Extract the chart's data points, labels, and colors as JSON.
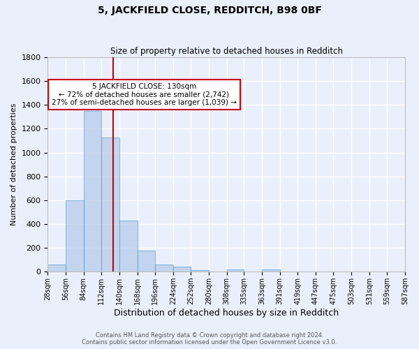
{
  "title": "5, JACKFIELD CLOSE, REDDITCH, B98 0BF",
  "subtitle": "Size of property relative to detached houses in Redditch",
  "xlabel": "Distribution of detached houses by size in Redditch",
  "ylabel": "Number of detached properties",
  "footer1": "Contains HM Land Registry data © Crown copyright and database right 2024.",
  "footer2": "Contains public sector information licensed under the Open Government Licence v3.0.",
  "bins": [
    28,
    56,
    84,
    112,
    140,
    168,
    196,
    224,
    252,
    280,
    308,
    335,
    363,
    391,
    419,
    447,
    475,
    503,
    531,
    559,
    587
  ],
  "bar_heights": [
    60,
    600,
    1350,
    1125,
    430,
    175,
    62,
    40,
    12,
    0,
    20,
    0,
    22,
    0,
    0,
    0,
    0,
    0,
    0,
    0
  ],
  "bar_color": "#aec6e8",
  "bar_edge_color": "#5a9fd4",
  "bar_alpha": 0.65,
  "vline_x": 130,
  "vline_color": "#cc0000",
  "annotation_line1": "5 JACKFIELD CLOSE: 130sqm",
  "annotation_line2": "← 72% of detached houses are smaller (2,742)",
  "annotation_line3": "27% of semi-detached houses are larger (1,039) →",
  "annotation_box_color": "white",
  "annotation_box_edge": "#cc0000",
  "ylim": [
    0,
    1800
  ],
  "background_color": "#eaf0fb",
  "grid_color": "white",
  "tick_labels": [
    "28sqm",
    "56sqm",
    "84sqm",
    "112sqm",
    "140sqm",
    "168sqm",
    "196sqm",
    "224sqm",
    "252sqm",
    "280sqm",
    "308sqm",
    "335sqm",
    "363sqm",
    "391sqm",
    "419sqm",
    "447sqm",
    "475sqm",
    "503sqm",
    "531sqm",
    "559sqm",
    "587sqm"
  ]
}
